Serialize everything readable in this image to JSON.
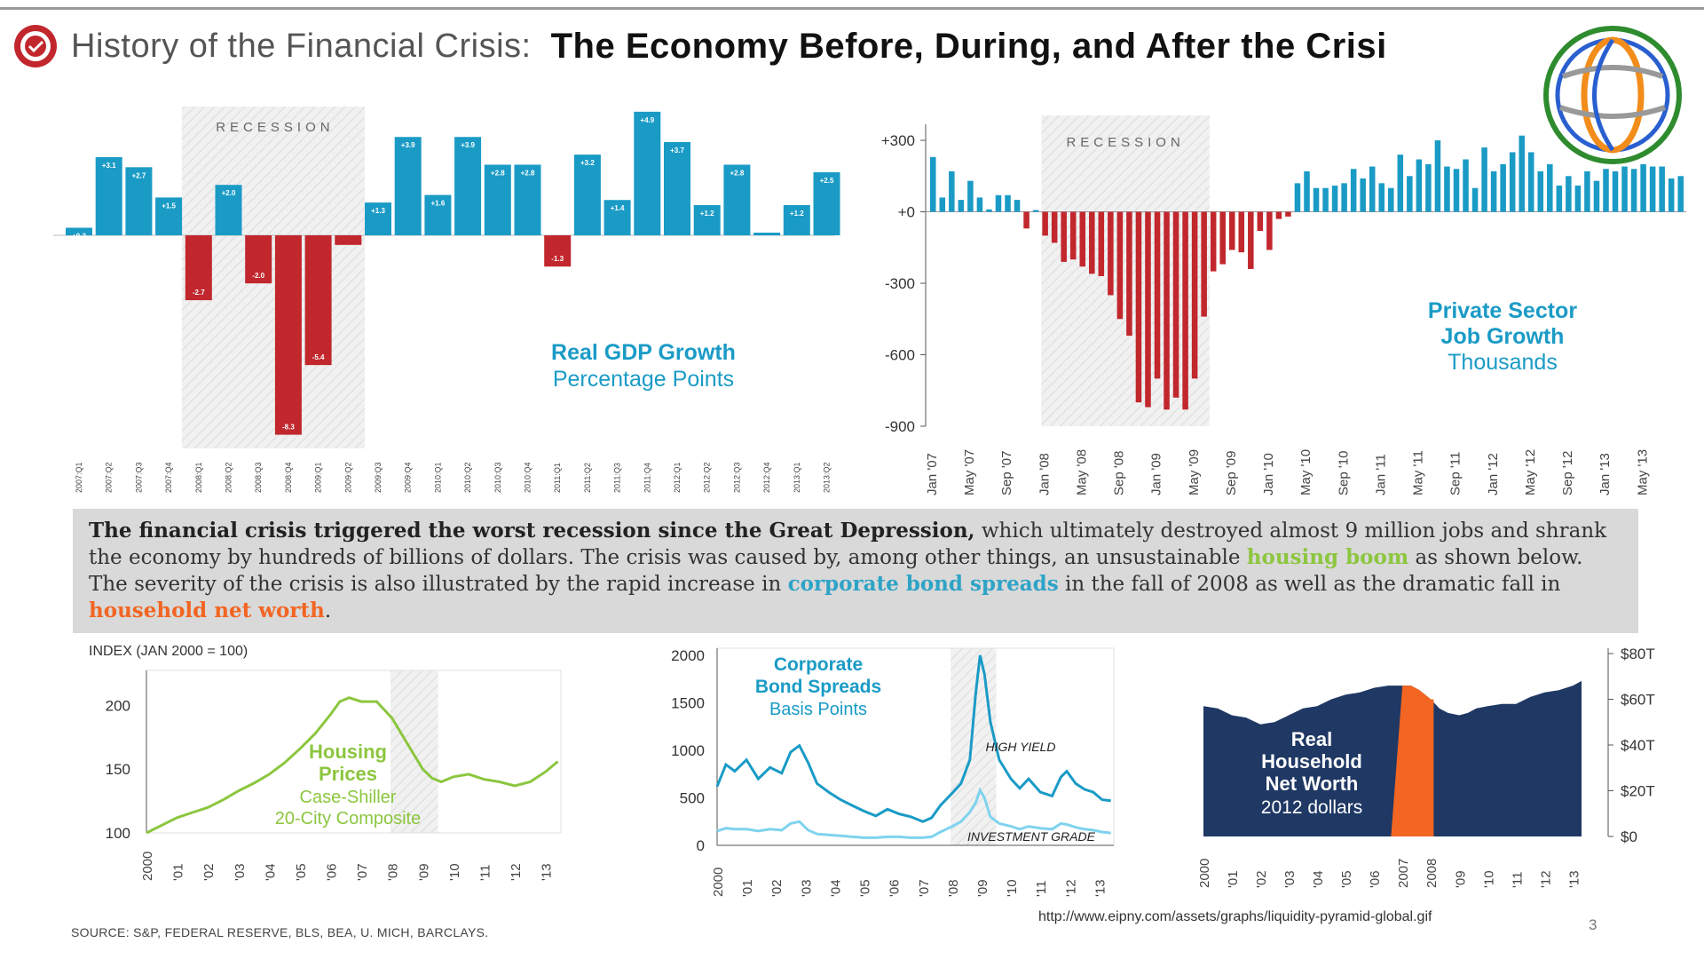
{
  "header": {
    "title_prefix": "History of the Financial Crisis:",
    "title_main": "The Economy Before, During, and After the Crisi"
  },
  "colors": {
    "blue": "#1a9bc6",
    "red": "#c1272d",
    "green": "#8cc63f",
    "navy": "#1f3864",
    "orange": "#f26522",
    "recession_band": "#eeeeee"
  },
  "charts": [
    {
      "type": "bar",
      "title": "Real GDP Growth",
      "subtitle": "Percentage Points",
      "band_label": "RECESSION",
      "categories": [
        "2007:Q1",
        "2007:Q2",
        "2007:Q3",
        "2007:Q4",
        "2008:Q1",
        "2008:Q2",
        "2008:Q3",
        "2008:Q4",
        "2009:Q1",
        "2009:Q2",
        "2009:Q3",
        "2009:Q4",
        "2010:Q1",
        "2010:Q2",
        "2010:Q3",
        "2010:Q4",
        "2011:Q1",
        "2011:Q2",
        "2011:Q3",
        "2011:Q4",
        "2012:Q1",
        "2012:Q2",
        "2012:Q3",
        "2012:Q4",
        "2013:Q1",
        "2013:Q2"
      ],
      "values": [
        0.3,
        3.1,
        2.7,
        1.5,
        -2.7,
        2.0,
        -2.0,
        -8.3,
        -5.4,
        -0.4,
        1.3,
        3.9,
        1.6,
        3.9,
        2.8,
        2.8,
        -1.3,
        3.2,
        1.4,
        4.9,
        3.7,
        1.2,
        2.8,
        0.1,
        1.2,
        2.5
      ],
      "value_labels": [
        "+0.3",
        "+3.1",
        "+2.7",
        "+1.5",
        "-2.7",
        "+2.0",
        "-2.0",
        "-8.3",
        "-5.4",
        "",
        "+1.3",
        "+3.9",
        "+1.6",
        "+3.9",
        "+2.8",
        "+2.8",
        "-1.3",
        "+3.2",
        "+1.4",
        "+4.9",
        "+3.7",
        "+1.2",
        "+2.8",
        "+0.1",
        "+1.2",
        "+2.5"
      ],
      "recession_range": [
        4,
        9
      ],
      "ylim": [
        -8.5,
        5.0
      ]
    },
    {
      "type": "bar",
      "title": "Private Sector",
      "title2": "Job Growth",
      "subtitle": "Thousands",
      "band_label": "RECESSION",
      "yticks": [
        "+300",
        "+0",
        "-300",
        "-600",
        "-900"
      ],
      "ytick_values": [
        300,
        0,
        -300,
        -600,
        -900
      ],
      "ylim": [
        -900,
        330
      ],
      "x_tick_labels": [
        "Jan '07",
        "May '07",
        "Sep '07",
        "Jan '08",
        "May '08",
        "Sep '08",
        "Jan '09",
        "May '09",
        "Sep '09",
        "Jan '10",
        "May '10",
        "Sep '10",
        "Jan '11",
        "May '11",
        "Sep '11",
        "Jan '12",
        "May '12",
        "Sep '12",
        "Jan '13",
        "May '13"
      ],
      "recession_range": [
        12,
        29
      ],
      "values": [
        230,
        60,
        170,
        50,
        130,
        60,
        10,
        70,
        70,
        50,
        -70,
        0,
        -100,
        -130,
        -210,
        -200,
        -230,
        -260,
        -270,
        -350,
        -450,
        -520,
        -800,
        -820,
        -700,
        -830,
        -780,
        -830,
        -700,
        -440,
        -250,
        -220,
        -160,
        -170,
        -240,
        -80,
        -160,
        -30,
        -20,
        120,
        170,
        100,
        100,
        110,
        120,
        180,
        140,
        190,
        120,
        100,
        240,
        150,
        220,
        200,
        300,
        190,
        180,
        220,
        100,
        270,
        170,
        200,
        250,
        320,
        250,
        170,
        200,
        110,
        150,
        110,
        170,
        130,
        180,
        170,
        190,
        180,
        200,
        190,
        190,
        140,
        150
      ]
    },
    {
      "type": "line",
      "title": "Housing",
      "title2": "Prices",
      "subtitle": "Case-Shiller",
      "subtitle2": "20-City Composite",
      "ylabel": "INDEX (JAN 2000 = 100)",
      "yticks": [
        "200",
        "150",
        "100"
      ],
      "ytick_values": [
        200,
        150,
        100
      ],
      "ylim": [
        100,
        210
      ],
      "x_tick_labels": [
        "2000",
        "'01",
        "'02",
        "'03",
        "'04",
        "'05",
        "'06",
        "'07",
        "'08",
        "'09",
        "'10",
        "'11",
        "'12",
        "'13"
      ],
      "x": [
        2000,
        2000.5,
        2001,
        2001.5,
        2002,
        2002.5,
        2003,
        2003.5,
        2004,
        2004.5,
        2005,
        2005.5,
        2006,
        2006.3,
        2006.6,
        2007,
        2007.5,
        2008,
        2008.5,
        2009,
        2009.3,
        2009.6,
        2010,
        2010.5,
        2011,
        2011.5,
        2012,
        2012.5,
        2013,
        2013.4
      ],
      "values": [
        100,
        106,
        112,
        116,
        120,
        126,
        133,
        139,
        146,
        155,
        166,
        178,
        193,
        203,
        206,
        203,
        203,
        190,
        170,
        150,
        143,
        140,
        144,
        146,
        142,
        140,
        137,
        140,
        148,
        156
      ],
      "recession_range": [
        2007.95,
        2009.5
      ]
    },
    {
      "type": "line",
      "title": "Corporate",
      "title2": "Bond Spreads",
      "subtitle": "Basis Points",
      "series_names": [
        "HIGH YIELD",
        "INVESTMENT GRADE"
      ],
      "yticks": [
        "2000",
        "1500",
        "1000",
        "500",
        "0"
      ],
      "ytick_values": [
        2000,
        1500,
        1000,
        500,
        0
      ],
      "ylim": [
        0,
        2000
      ],
      "x_tick_labels": [
        "2000",
        "'01",
        "'02",
        "'03",
        "'04",
        "'05",
        "'06",
        "'07",
        "'08",
        "'09",
        "'10",
        "'11",
        "'12",
        "'13"
      ],
      "x": [
        2000,
        2000.3,
        2000.6,
        2001,
        2001.4,
        2001.8,
        2002.2,
        2002.5,
        2002.8,
        2003.1,
        2003.4,
        2003.8,
        2004.2,
        2004.6,
        2005,
        2005.4,
        2005.8,
        2006.2,
        2006.6,
        2007,
        2007.3,
        2007.6,
        2008,
        2008.3,
        2008.6,
        2008.8,
        2008.95,
        2009.1,
        2009.3,
        2009.6,
        2010,
        2010.3,
        2010.6,
        2011,
        2011.4,
        2011.7,
        2011.9,
        2012.2,
        2012.5,
        2012.8,
        2013.1,
        2013.4
      ],
      "series": [
        {
          "name": "HIGH YIELD",
          "values": [
            620,
            850,
            780,
            900,
            700,
            820,
            760,
            980,
            1050,
            870,
            650,
            560,
            480,
            420,
            360,
            310,
            380,
            330,
            300,
            250,
            290,
            420,
            550,
            650,
            900,
            1600,
            2000,
            1800,
            1300,
            900,
            700,
            600,
            700,
            560,
            520,
            720,
            780,
            650,
            590,
            560,
            480,
            470
          ]
        },
        {
          "name": "INVESTMENT GRADE",
          "values": [
            150,
            180,
            170,
            170,
            150,
            170,
            160,
            230,
            250,
            160,
            120,
            110,
            100,
            90,
            80,
            80,
            90,
            90,
            80,
            80,
            90,
            140,
            200,
            250,
            350,
            450,
            580,
            500,
            300,
            230,
            200,
            170,
            200,
            180,
            170,
            230,
            220,
            190,
            170,
            160,
            140,
            130
          ]
        }
      ],
      "recession_range": [
        2007.95,
        2009.5
      ]
    },
    {
      "type": "area",
      "title": "Real",
      "title2": "Household",
      "title3": "Net Worth",
      "subtitle": "2012 dollars",
      "yticks": [
        "$80T",
        "$60T",
        "$40T",
        "$20T",
        "$0"
      ],
      "ytick_values": [
        80,
        60,
        40,
        20,
        0
      ],
      "ylim": [
        0,
        80
      ],
      "x_tick_labels": [
        "2000",
        "'01",
        "'02",
        "'03",
        "'04",
        "'05",
        "'06",
        "2007",
        "2008",
        "'09",
        "'10",
        "'11",
        "'12",
        "'13"
      ],
      "x": [
        2000,
        2000.5,
        2001,
        2001.5,
        2002,
        2002.5,
        2003,
        2003.5,
        2004,
        2004.5,
        2005,
        2005.5,
        2006,
        2006.5,
        2007,
        2007.3,
        2007.6,
        2008,
        2008.3,
        2008.6,
        2009,
        2009.3,
        2009.6,
        2010,
        2010.5,
        2011,
        2011.5,
        2012,
        2012.5,
        2013,
        2013.3
      ],
      "values": [
        57,
        56,
        53,
        52,
        49,
        50,
        53,
        56,
        57,
        60,
        62,
        63,
        65,
        66,
        66,
        66,
        64,
        60,
        56,
        54,
        53,
        54,
        56,
        57,
        58,
        58,
        61,
        63,
        64,
        66,
        68
      ],
      "highlight_range": [
        2006.6,
        2008.1
      ]
    }
  ],
  "summary": {
    "bold_lead": "The financial crisis triggered the worst recession since the Great Depression,",
    "text1": " which ultimately destroyed almost 9 million jobs and shrank the economy by hundreds of billions of dollars. The crisis was caused by, among other things, an unsustainable ",
    "housing": "housing boom",
    "text2": " as shown below. The severity of the crisis is also illustrated by the rapid increase in ",
    "spreads": "corporate bond spreads",
    "text3": " in the fall of 2008 as well as the dramatic fall in ",
    "networth": "household net worth",
    "text4": "."
  },
  "footer": {
    "source": "SOURCE: S&P, FEDERAL RESERVE, BLS,  BEA, U. MICH, BARCLAYS.",
    "url": "http://www.eipny.com/assets/graphs/liquidity-pyramid-global.gif",
    "page": "3"
  }
}
